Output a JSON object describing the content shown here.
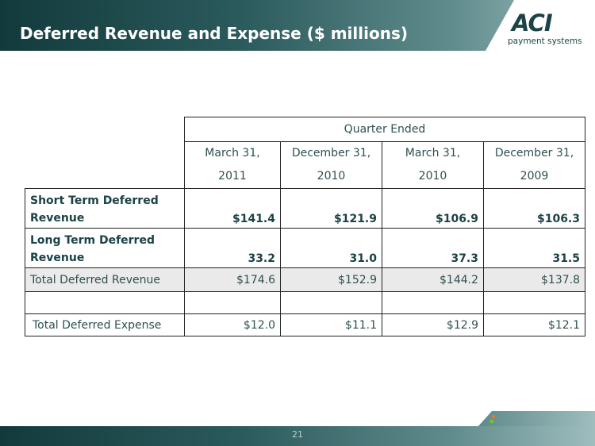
{
  "header": {
    "title": "Deferred Revenue and Expense ($ millions)"
  },
  "logo": {
    "brand": "ACI",
    "tagline": "payment systems"
  },
  "table": {
    "group_header": "Quarter Ended",
    "columns": [
      {
        "line1": "March 31,",
        "line2": "2011"
      },
      {
        "line1": "December 31,",
        "line2": "2010"
      },
      {
        "line1": "March 31,",
        "line2": "2010"
      },
      {
        "line1": "December 31,",
        "line2": "2009"
      }
    ],
    "rows": [
      {
        "label_line1": "Short Term Deferred",
        "label_line2": "Revenue",
        "values": [
          "$141.4",
          "$121.9",
          "$106.9",
          "$106.3"
        ]
      },
      {
        "label_line1": "Long Term Deferred",
        "label_line2": "Revenue",
        "values": [
          "33.2",
          "31.0",
          "37.3",
          "31.5"
        ]
      },
      {
        "label": "Total Deferred Revenue",
        "values": [
          "$174.6",
          "$152.9",
          "$144.2",
          "$137.8"
        ]
      },
      {
        "label": "Total Deferred Expense",
        "values": [
          "$12.0",
          "$11.1",
          "$12.9",
          "$12.1"
        ]
      }
    ]
  },
  "footer": {
    "page_number": "21"
  },
  "colors": {
    "header_dark": "#123a3c",
    "header_light": "#9fbdbd",
    "text_dark_teal": "#1b4245",
    "shaded_row": "#eaeaea"
  }
}
